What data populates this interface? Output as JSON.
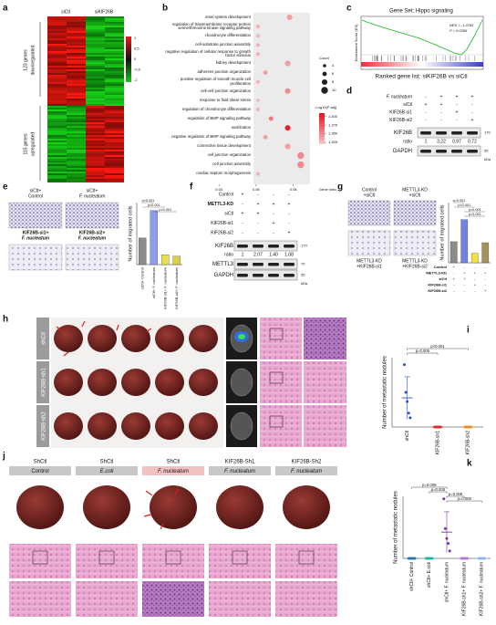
{
  "panels": {
    "a": {
      "label": "a",
      "columns": [
        "siCtl",
        "siKIF26B"
      ],
      "rows": [
        [
          "123 genes",
          "downregulated"
        ],
        [
          "115 genes",
          "upregulated"
        ]
      ],
      "scale": [
        "1",
        "0.5",
        "0",
        "-0.5",
        "-1"
      ]
    },
    "c": {
      "label": "c",
      "title": "Gene Set: Hippo signaling",
      "nes": "NES = -1.4762",
      "p": "P = 0.0286",
      "y_label": "Enrichment Score (ES)",
      "x_label": "Ranked gene list: siKIF26B vs siCtl"
    },
    "d": {
      "label": "d",
      "conditions": [
        {
          "name": "F. nucleatum",
          "signs": [
            "-",
            "+",
            "+",
            "+"
          ]
        },
        {
          "name": "siCtl",
          "signs": [
            "+",
            "+",
            "-",
            "-"
          ]
        },
        {
          "name": "KIF26B-si1",
          "signs": [
            "-",
            "-",
            "+",
            "-"
          ]
        },
        {
          "name": "KIF26B-si2",
          "signs": [
            "-",
            "-",
            "-",
            "+"
          ]
        }
      ],
      "bands": [
        "KIF26B",
        "GAPDH"
      ],
      "ratio_label": "ratio",
      "ratios": [
        "1",
        "3.22",
        "0.97",
        "0.72"
      ],
      "markers": [
        "170",
        "35"
      ],
      "unit": "kDa"
    },
    "e": {
      "label": "e",
      "images": [
        [
          "siCtl+",
          "Control"
        ],
        [
          "siCtl+",
          "F. nucleatum"
        ],
        [
          "KIF26B-si1+",
          "F. nucleatum"
        ],
        [
          "KIF26B-si2+",
          "F. nucleatum"
        ]
      ]
    },
    "f": {
      "label": "f",
      "conditions": [
        {
          "name": "Control",
          "signs": [
            "+",
            "-",
            "-",
            "-"
          ]
        },
        {
          "name": "METTL3-KD",
          "signs": [
            "-",
            "+",
            "+",
            "+"
          ]
        },
        {
          "name": "siCtl",
          "signs": [
            "+",
            "+",
            "-",
            "-"
          ]
        },
        {
          "name": "KIF26B-si1",
          "signs": [
            "-",
            "-",
            "+",
            "-"
          ]
        },
        {
          "name": "KIF26B-si2",
          "signs": [
            "-",
            "-",
            "-",
            "+"
          ]
        }
      ],
      "bands": [
        "KIF26B",
        "METTL3",
        "GAPDH"
      ],
      "ratio_label": "ratio",
      "ratios": [
        "1",
        "2.07",
        "1.40",
        "1.08"
      ],
      "markers": [
        "170",
        "70",
        "35"
      ],
      "unit": "kDa"
    },
    "g": {
      "label": "g",
      "images": [
        [
          "Control",
          "+siCtl"
        ],
        [
          "METTL3-KD",
          "+siCtl"
        ],
        [
          "METTL3-KD",
          "+KIF26B-si1"
        ],
        [
          "METTL3-KD",
          "+KIF26B-si2"
        ]
      ],
      "conditions": [
        {
          "name": "Control",
          "signs": [
            "+",
            "-",
            "-",
            "-"
          ]
        },
        {
          "name": "METTL3-KD",
          "signs": [
            "-",
            "+",
            "+",
            "+"
          ]
        },
        {
          "name": "siCtl",
          "signs": [
            "+",
            "+",
            "-",
            "-"
          ]
        },
        {
          "name": "KIF26B-si1",
          "signs": [
            "-",
            "-",
            "+",
            "-"
          ]
        },
        {
          "name": "KIF26B-si2",
          "signs": [
            "-",
            "-",
            "-",
            "+"
          ]
        }
      ]
    },
    "h": {
      "label": "h",
      "rows": [
        "shCtl",
        "KIF26B-sh1",
        "KIF26B-sh2"
      ]
    },
    "j": {
      "label": "j",
      "groups": [
        [
          "ShCtl",
          "Control"
        ],
        [
          "ShCtl",
          "E.coli"
        ],
        [
          "ShCtl",
          "F. nucleatum"
        ],
        [
          "KIF26B-Sh1",
          "F. nucleatum"
        ],
        [
          "KIF26B-Sh2",
          "F. nucleatum"
        ]
      ]
    }
  },
  "chart_data": [
    {
      "type": "dot",
      "label": "b",
      "categories": [
        "renal system development",
        "regulation of transmembrane receptor protein serine/threonine kinase signaling pathway",
        "chondrocyte differentiation",
        "cell-substrate junction assembly",
        "negative regulation of cellular response to growth factor stimulus",
        "kidney development",
        "adherens junction organization",
        "positive regulation of smooth muscle cell proliferation",
        "cell-cell junction organization",
        "response to fluid shear stress",
        "regulation of chondrocyte differentiation",
        "regulation of BMP signaling pathway",
        "ossification",
        "negative regulation of BMP signaling pathway",
        "connective tissue development",
        "cell junction organization",
        "cell junction assembly",
        "cardiac septum morphogenesis"
      ],
      "x": [
        0.078,
        0.061,
        0.061,
        0.061,
        0.061,
        0.077,
        0.065,
        0.061,
        0.077,
        0.061,
        0.061,
        0.068,
        0.077,
        0.065,
        0.077,
        0.084,
        0.084,
        0.061
      ],
      "sizes": [
        8,
        5,
        5,
        5,
        5,
        8,
        6,
        5,
        8,
        4,
        5,
        6,
        8,
        6,
        8,
        10,
        10,
        5
      ],
      "padj": [
        1.34,
        1.33,
        1.33,
        1.33,
        1.33,
        1.34,
        1.34,
        1.33,
        1.35,
        1.33,
        1.33,
        1.36,
        1.4,
        1.34,
        1.34,
        1.35,
        1.35,
        1.33
      ],
      "x_label": "Gene ratio",
      "xlim": [
        0.036,
        0.089
      ],
      "xticks": [
        0.04,
        0.06,
        0.08
      ],
      "size_legend": {
        "title": "Count",
        "values": [
          4,
          6,
          8,
          10
        ]
      },
      "color_legend": {
        "title": "-Log10(P adj)",
        "clim": [
          1.32,
          1.41
        ],
        "colors": [
          "#f6c6c6",
          "#e3121b"
        ],
        "ticks": [
          {
            "value": 1.4,
            "label": "1.400"
          },
          {
            "value": 1.375,
            "label": "1.375"
          },
          {
            "value": 1.35,
            "label": "1.350"
          },
          {
            "value": 1.325,
            "label": "1.325"
          }
        ]
      }
    },
    {
      "type": "bar",
      "label": "e",
      "y_label": "Number of migrated cells",
      "categories": [
        "siCtl+ Control",
        "siCtl+ F. nucleatum",
        "KIF26B-si1+ F. nucleatum",
        "KIF26B-si2+ F. nucleatum"
      ],
      "values": [
        300,
        610,
        110,
        95
      ],
      "colors": [
        "#8c8c8c",
        "#8e9cea",
        "#e8df55",
        "#d9cf4a"
      ],
      "ylim": [
        0,
        700
      ],
      "annotations": [
        "p<0.001",
        "p<0.001",
        "p<0.001"
      ]
    },
    {
      "type": "bar",
      "label": "g",
      "y_label": "Number of migrated cells",
      "values": [
        210,
        430,
        95,
        200
      ],
      "colors": [
        "#8c8c8c",
        "#7282e2",
        "#f3e23c",
        "#a5935a"
      ],
      "ylim": [
        0,
        600
      ],
      "annotations": [
        "p=0.001",
        "p<0.001",
        "p<0.001",
        "p=0.001"
      ]
    },
    {
      "type": "strip",
      "label": "i",
      "y_label": "Number of metastatic nodules",
      "categories": [
        "shCtl",
        "KIF26B-sh1",
        "KIF26B-sh2"
      ],
      "values": [
        [
          27,
          15,
          11,
          6,
          4
        ],
        [
          0,
          0,
          0,
          0,
          0
        ],
        [
          0,
          0,
          0,
          0,
          0
        ]
      ],
      "colors": [
        "#2b4fd8",
        "#e0261f",
        "#f08a1c"
      ],
      "ylim": [
        0,
        30
      ],
      "annotations": [
        "p<0.001",
        "p=0.005"
      ]
    },
    {
      "type": "strip",
      "label": "k",
      "y_label": "Number of metastatic nodules",
      "categories": [
        "shCtl+ Control",
        "shCtl+ E.coli",
        "shCtl+ F. nucleatum",
        "KIF26B-sh1+ F. nucleatum",
        "KIF26B-sh2+ F. nucleatum"
      ],
      "values": [
        [
          0,
          0,
          0,
          0,
          0
        ],
        [
          0,
          0,
          0,
          0,
          0
        ],
        [
          24,
          12,
          8,
          6,
          3
        ],
        [
          0,
          0,
          0,
          0,
          0
        ],
        [
          0,
          0,
          0,
          0,
          0
        ]
      ],
      "colors": [
        "#2c6fb6",
        "#1fb6a6",
        "#7b3294",
        "#b37acb",
        "#8fb7e1"
      ],
      "ylim": [
        0,
        25
      ],
      "annotations": [
        "p=0.008",
        "p=0.008",
        "p=0.008",
        "p=0.008"
      ]
    }
  ]
}
